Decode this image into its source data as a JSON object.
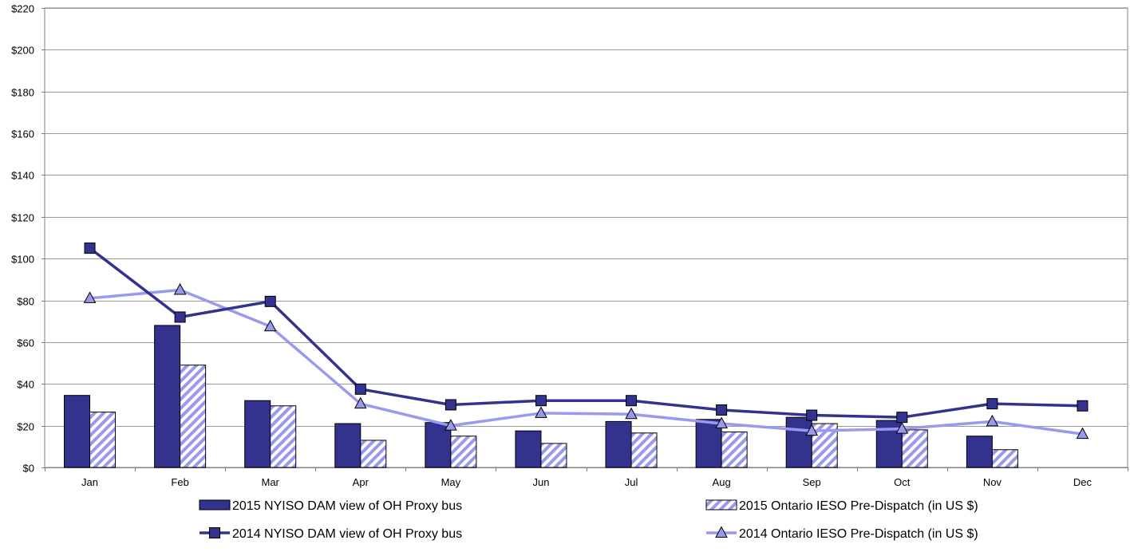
{
  "chart_data": {
    "type": "bar",
    "categories": [
      "Jan",
      "Feb",
      "Mar",
      "Apr",
      "May",
      "Jun",
      "Jul",
      "Aug",
      "Sep",
      "Oct",
      "Nov",
      "Dec"
    ],
    "ylim": [
      0,
      220
    ],
    "ytick_step": 20,
    "ytick_labels": [
      "$0",
      "$20",
      "$40",
      "$60",
      "$80",
      "$100",
      "$120",
      "$140",
      "$160",
      "$180",
      "$200",
      "$220"
    ],
    "grid": true,
    "legend_position": "bottom",
    "series": [
      {
        "name": "2015 NYISO DAM view of OH Proxy bus",
        "kind": "bar",
        "fill": "solid",
        "color": "#33338f",
        "values": [
          34.5,
          68,
          32,
          21,
          21.5,
          17.5,
          22,
          23,
          24,
          22.5,
          15,
          null
        ]
      },
      {
        "name": "2015 Ontario IESO Pre-Dispatch (in US $)",
        "kind": "bar",
        "fill": "hatched",
        "color": "#9999ee",
        "values": [
          26.5,
          49,
          29.5,
          13,
          15,
          11.5,
          16.5,
          17,
          21,
          18,
          8.5,
          null
        ]
      },
      {
        "name": "2014 NYISO DAM view of OH Proxy bus",
        "kind": "line",
        "marker": "square",
        "color": "#33338f",
        "values": [
          105,
          72,
          79.5,
          37.5,
          30,
          32,
          32,
          27.5,
          25,
          24,
          30.5,
          29.5
        ]
      },
      {
        "name": "2014 Ontario IESO Pre-Dispatch (in US $)",
        "kind": "line",
        "marker": "triangle",
        "color": "#9999ee",
        "values": [
          81,
          85,
          67.5,
          30.5,
          20,
          26,
          25.5,
          21,
          17.5,
          18.5,
          22,
          16
        ]
      }
    ]
  }
}
